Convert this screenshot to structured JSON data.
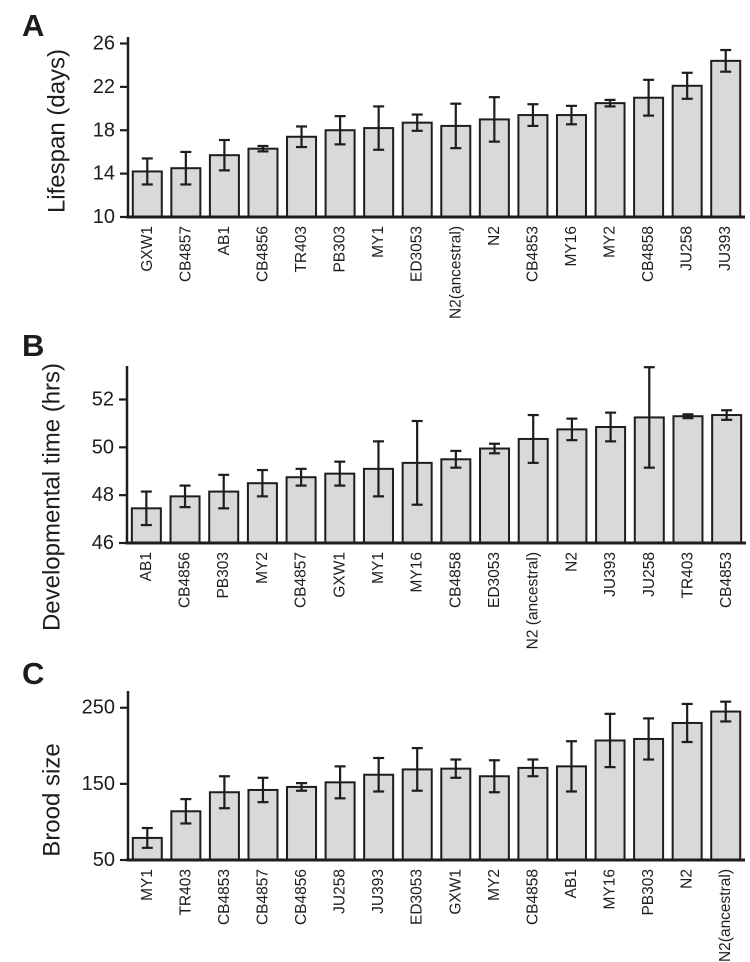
{
  "figure": {
    "description": "Three-panel bar chart figure comparing C. elegans wild isolate strains",
    "bar_fill": "#d9d9d9",
    "line_color": "#1e1c1c",
    "background": "#ffffff"
  },
  "chart_data": [
    {
      "type": "bar",
      "panel": "A",
      "title": "",
      "xlabel": "",
      "ylabel": "Lifespan (days)",
      "ylim": [
        10,
        26.6
      ],
      "yticks": [
        10,
        14,
        18,
        22,
        26
      ],
      "grid": false,
      "legend": "none",
      "categories": [
        "GXW1",
        "CB4857",
        "AB1",
        "CB4856",
        "TR403",
        "PB303",
        "MY1",
        "ED3053",
        "N2(ancestral)",
        "N2",
        "CB4853",
        "MY16",
        "MY2",
        "CB4858",
        "JU258",
        "JU393"
      ],
      "values": [
        14.2,
        14.5,
        15.7,
        16.3,
        17.4,
        18.0,
        18.2,
        18.7,
        18.4,
        19.0,
        19.4,
        19.4,
        20.5,
        21.0,
        22.1,
        24.4
      ],
      "errors": [
        1.2,
        1.5,
        1.4,
        0.25,
        0.95,
        1.3,
        2.0,
        0.75,
        2.05,
        2.05,
        1.0,
        0.85,
        0.3,
        1.65,
        1.2,
        1.0
      ]
    },
    {
      "type": "bar",
      "panel": "B",
      "title": "",
      "xlabel": "",
      "ylabel": "Developmental time (hrs)",
      "ylim": [
        46,
        53.4
      ],
      "yticks": [
        46,
        48,
        50,
        52
      ],
      "grid": false,
      "legend": "none",
      "categories": [
        "AB1",
        "CB4856",
        "PB303",
        "MY2",
        "CB4857",
        "GXW1",
        "MY1",
        "MY16",
        "CB4858",
        "ED3053",
        "N2 (ancestral)",
        "N2",
        "JU393",
        "JU258",
        "TR403",
        "CB4853"
      ],
      "values": [
        47.45,
        47.95,
        48.15,
        48.5,
        48.75,
        48.9,
        49.1,
        49.35,
        49.5,
        49.95,
        50.35,
        50.75,
        50.85,
        51.25,
        51.3,
        51.35
      ],
      "errors": [
        0.7,
        0.45,
        0.7,
        0.55,
        0.35,
        0.5,
        1.15,
        1.75,
        0.35,
        0.2,
        1.0,
        0.45,
        0.6,
        2.1,
        0.08,
        0.2
      ]
    },
    {
      "type": "bar",
      "panel": "C",
      "title": "",
      "xlabel": "",
      "ylabel": "Brood size",
      "ylim": [
        50,
        272
      ],
      "yticks": [
        50,
        150,
        250
      ],
      "grid": false,
      "legend": "none",
      "categories": [
        "MY1",
        "TR403",
        "CB4853",
        "CB4857",
        "CB4856",
        "JU258",
        "JU393",
        "ED3053",
        "GXW1",
        "MY2",
        "CB4858",
        "AB1",
        "MY16",
        "PB303",
        "N2",
        "N2(ancestral)"
      ],
      "values": [
        79,
        114,
        139,
        142,
        146,
        152,
        162,
        169,
        170,
        160,
        171,
        173,
        207,
        209,
        230,
        245
      ],
      "errors": [
        13,
        16,
        21,
        16,
        5,
        21,
        22,
        28,
        12,
        21,
        11,
        33,
        35,
        27,
        25,
        13
      ]
    }
  ]
}
